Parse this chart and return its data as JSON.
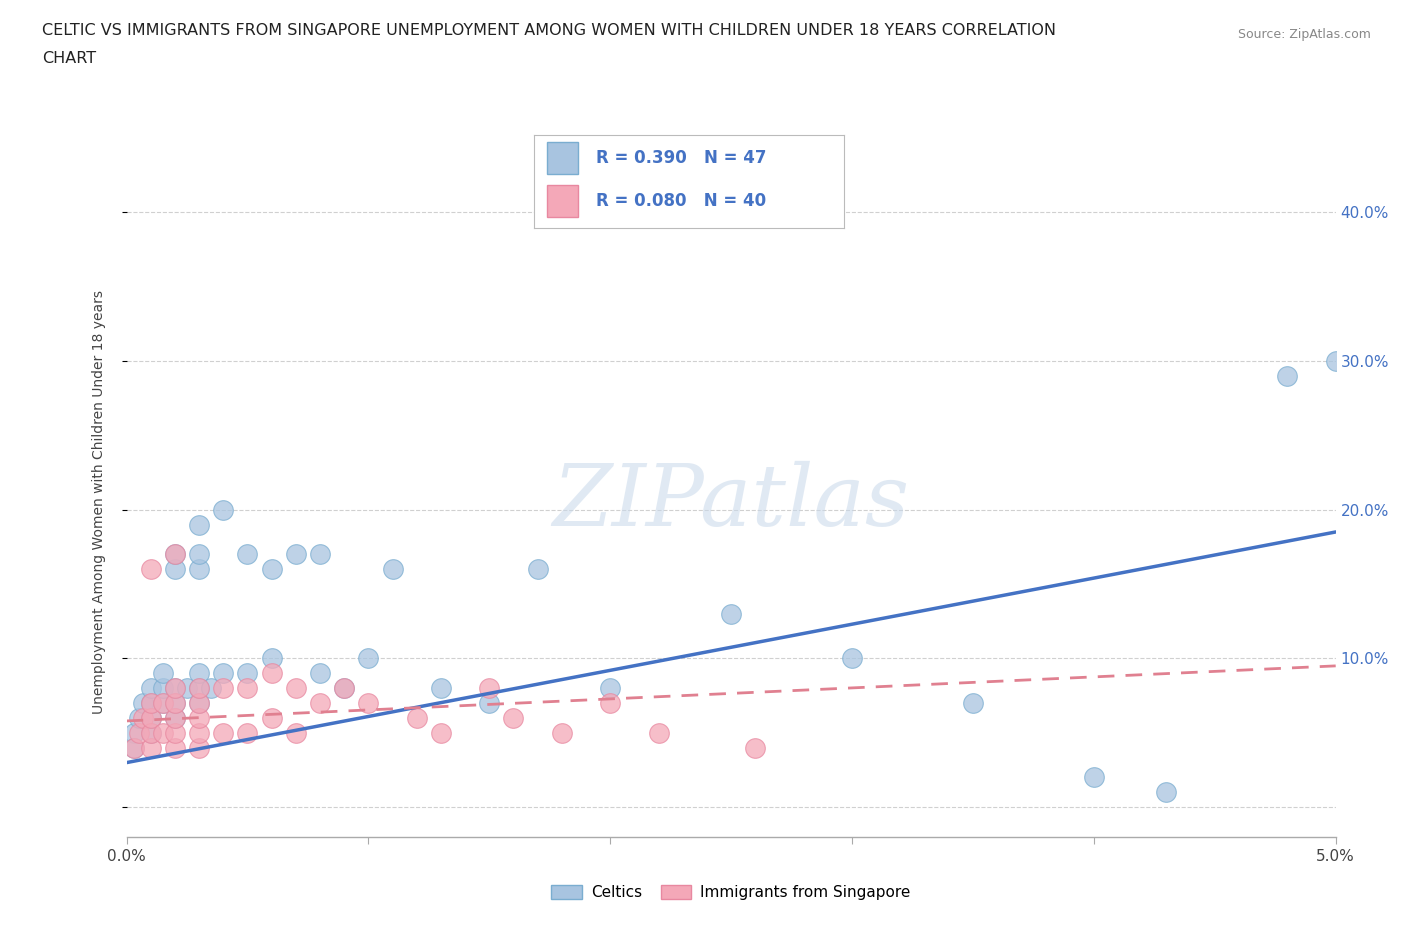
{
  "title": "CELTIC VS IMMIGRANTS FROM SINGAPORE UNEMPLOYMENT AMONG WOMEN WITH CHILDREN UNDER 18 YEARS CORRELATION\nCHART",
  "source": "Source: ZipAtlas.com",
  "ylabel": "Unemployment Among Women with Children Under 18 years",
  "xlim": [
    0.0,
    0.05
  ],
  "ylim": [
    -0.02,
    0.43
  ],
  "xticks": [
    0.0,
    0.01,
    0.02,
    0.03,
    0.04,
    0.05
  ],
  "xtick_labels": [
    "0.0%",
    "",
    "",
    "",
    "",
    "5.0%"
  ],
  "yticks": [
    0.0,
    0.1,
    0.2,
    0.3,
    0.4
  ],
  "ytick_labels": [
    "",
    "10.0%",
    "20.0%",
    "30.0%",
    "40.0%"
  ],
  "celtics_color": "#a8c4e0",
  "celtics_edge_color": "#7aadd0",
  "singapore_color": "#f4a8b8",
  "singapore_edge_color": "#e888a0",
  "celtics_R": 0.39,
  "celtics_N": 47,
  "singapore_R": 0.08,
  "singapore_N": 40,
  "legend1_label": "Celtics",
  "legend2_label": "Immigrants from Singapore",
  "watermark": "ZIPatlas",
  "background_color": "#ffffff",
  "grid_color": "#d0d0d0",
  "celtics_line_color": "#4472c4",
  "singapore_line_color": "#e08090",
  "tick_label_color": "#4472c4",
  "celtics_scatter_x": [
    0.0003,
    0.0003,
    0.0005,
    0.0007,
    0.001,
    0.001,
    0.001,
    0.001,
    0.0015,
    0.0015,
    0.0015,
    0.002,
    0.002,
    0.002,
    0.002,
    0.002,
    0.0025,
    0.003,
    0.003,
    0.003,
    0.003,
    0.003,
    0.003,
    0.0035,
    0.004,
    0.004,
    0.005,
    0.005,
    0.006,
    0.006,
    0.007,
    0.008,
    0.008,
    0.009,
    0.01,
    0.011,
    0.013,
    0.015,
    0.017,
    0.02,
    0.025,
    0.03,
    0.035,
    0.04,
    0.043,
    0.048,
    0.05
  ],
  "celtics_scatter_y": [
    0.05,
    0.04,
    0.06,
    0.07,
    0.05,
    0.06,
    0.07,
    0.08,
    0.07,
    0.08,
    0.09,
    0.06,
    0.07,
    0.08,
    0.16,
    0.17,
    0.08,
    0.07,
    0.08,
    0.09,
    0.16,
    0.17,
    0.19,
    0.08,
    0.09,
    0.2,
    0.09,
    0.17,
    0.1,
    0.16,
    0.17,
    0.09,
    0.17,
    0.08,
    0.1,
    0.16,
    0.08,
    0.07,
    0.16,
    0.08,
    0.13,
    0.1,
    0.07,
    0.02,
    0.01,
    0.29,
    0.3
  ],
  "singapore_scatter_x": [
    0.0003,
    0.0005,
    0.0007,
    0.001,
    0.001,
    0.001,
    0.001,
    0.001,
    0.0015,
    0.0015,
    0.002,
    0.002,
    0.002,
    0.002,
    0.002,
    0.002,
    0.003,
    0.003,
    0.003,
    0.003,
    0.003,
    0.004,
    0.004,
    0.005,
    0.005,
    0.006,
    0.006,
    0.007,
    0.007,
    0.008,
    0.009,
    0.01,
    0.012,
    0.013,
    0.015,
    0.016,
    0.018,
    0.02,
    0.022,
    0.026
  ],
  "singapore_scatter_y": [
    0.04,
    0.05,
    0.06,
    0.04,
    0.05,
    0.06,
    0.07,
    0.16,
    0.05,
    0.07,
    0.04,
    0.05,
    0.06,
    0.07,
    0.08,
    0.17,
    0.04,
    0.05,
    0.06,
    0.07,
    0.08,
    0.05,
    0.08,
    0.05,
    0.08,
    0.06,
    0.09,
    0.05,
    0.08,
    0.07,
    0.08,
    0.07,
    0.06,
    0.05,
    0.08,
    0.06,
    0.05,
    0.07,
    0.05,
    0.04
  ],
  "celtics_line_x0": 0.0,
  "celtics_line_y0": 0.03,
  "celtics_line_x1": 0.05,
  "celtics_line_y1": 0.185,
  "singapore_line_x0": 0.0,
  "singapore_line_y0": 0.058,
  "singapore_line_x1": 0.05,
  "singapore_line_y1": 0.095
}
